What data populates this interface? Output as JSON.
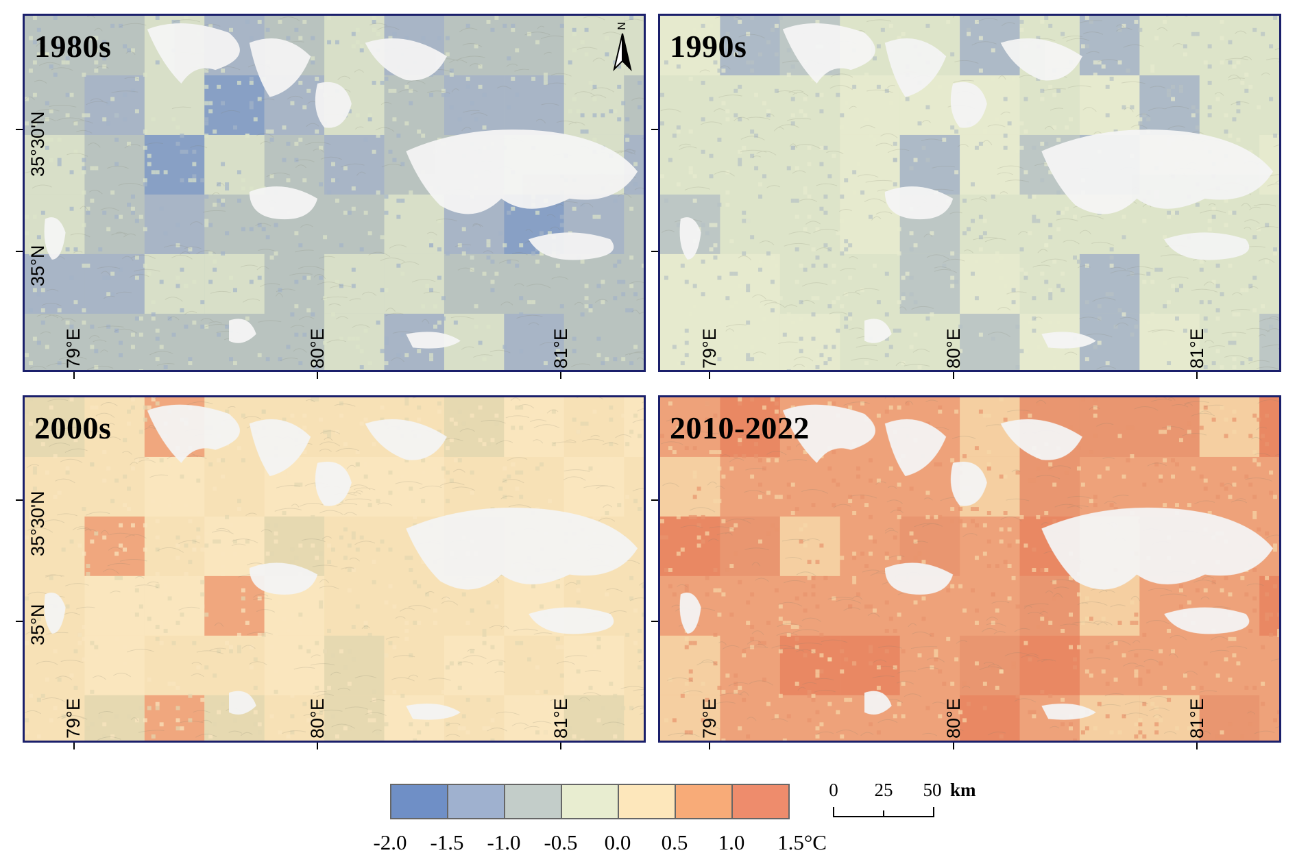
{
  "panels": [
    {
      "title": "1980s",
      "theme": "cold"
    },
    {
      "title": "1990s",
      "theme": "neutral"
    },
    {
      "title": "2000s",
      "theme": "warm"
    },
    {
      "title": "2010-2022",
      "theme": "hot"
    }
  ],
  "lon_labels": [
    "79°E",
    "80°E",
    "81°E"
  ],
  "lat_labels": [
    "35°30'N",
    "35°N"
  ],
  "north_arrow": {
    "letter": "N",
    "icon": "north-arrow-icon"
  },
  "legend": {
    "colors": [
      "#6f8fc6",
      "#9fb1cf",
      "#c3cdc9",
      "#e8edd0",
      "#fde7bb",
      "#f8ab78",
      "#ee8c6c"
    ],
    "labels": [
      "-2.0",
      "-1.5",
      "-1.0",
      "-0.5",
      "0.0",
      "0.5",
      "1.0",
      "1.5°C"
    ]
  },
  "scale_bar": {
    "labels": [
      "0",
      "25",
      "50"
    ],
    "unit": "km"
  }
}
